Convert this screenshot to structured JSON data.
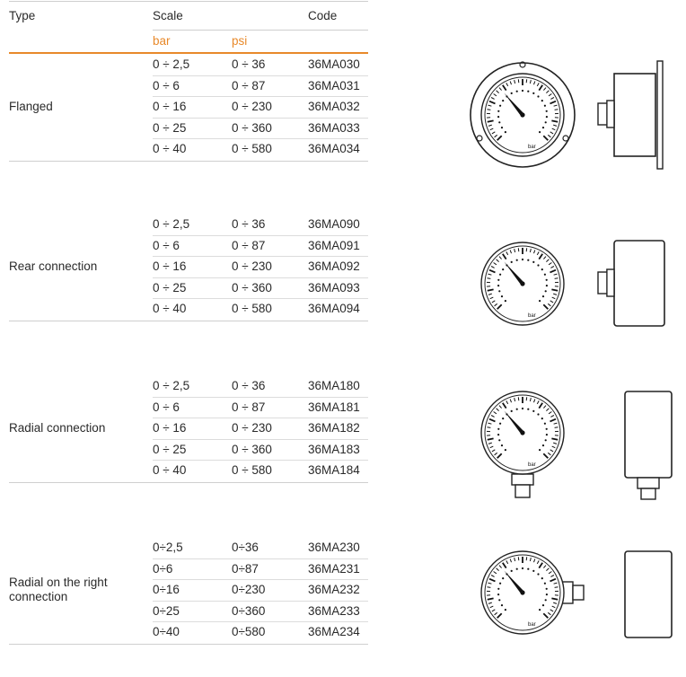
{
  "header": {
    "type": "Type",
    "scale": "Scale",
    "code": "Code",
    "bar": "bar",
    "psi": "psi"
  },
  "groups": [
    {
      "type": "Flanged",
      "rows": [
        {
          "bar": "0 ÷ 2,5",
          "psi": "0 ÷ 36",
          "code": "36MA030"
        },
        {
          "bar": "0 ÷ 6",
          "psi": "0 ÷ 87",
          "code": "36MA031"
        },
        {
          "bar": "0 ÷ 16",
          "psi": "0 ÷ 230",
          "code": "36MA032"
        },
        {
          "bar": "0 ÷ 25",
          "psi": "0 ÷ 360",
          "code": "36MA033"
        },
        {
          "bar": "0 ÷ 40",
          "psi": "0 ÷ 580",
          "code": "36MA034"
        }
      ]
    },
    {
      "type": "Rear connection",
      "rows": [
        {
          "bar": "0 ÷ 2,5",
          "psi": "0 ÷ 36",
          "code": "36MA090"
        },
        {
          "bar": "0 ÷ 6",
          "psi": "0 ÷ 87",
          "code": "36MA091"
        },
        {
          "bar": "0 ÷ 16",
          "psi": "0 ÷ 230",
          "code": "36MA092"
        },
        {
          "bar": "0 ÷ 25",
          "psi": "0 ÷ 360",
          "code": "36MA093"
        },
        {
          "bar": "0 ÷ 40",
          "psi": "0 ÷ 580",
          "code": "36MA094"
        }
      ]
    },
    {
      "type": "Radial connection",
      "rows": [
        {
          "bar": "0 ÷ 2,5",
          "psi": "0 ÷ 36",
          "code": "36MA180"
        },
        {
          "bar": "0 ÷ 6",
          "psi": "0 ÷ 87",
          "code": "36MA181"
        },
        {
          "bar": "0 ÷ 16",
          "psi": "0 ÷ 230",
          "code": "36MA182"
        },
        {
          "bar": "0 ÷ 25",
          "psi": "0 ÷ 360",
          "code": "36MA183"
        },
        {
          "bar": "0 ÷ 40",
          "psi": "0 ÷ 580",
          "code": "36MA184"
        }
      ]
    },
    {
      "type": "Radial on the right connection",
      "rows": [
        {
          "bar": "0÷2,5",
          "psi": "0÷36",
          "code": "36MA230"
        },
        {
          "bar": "0÷6",
          "psi": "0÷87",
          "code": "36MA231"
        },
        {
          "bar": "0÷16",
          "psi": "0÷230",
          "code": "36MA232"
        },
        {
          "bar": "0÷25",
          "psi": "0÷360",
          "code": "36MA233"
        },
        {
          "bar": "0÷40",
          "psi": "0÷580",
          "code": "36MA234"
        }
      ]
    }
  ],
  "dial": {
    "unit_label": "bar"
  },
  "figures": [
    {
      "name": "flanged-gauge-figure",
      "mount": "flanged"
    },
    {
      "name": "rear-connection-gauge-figure",
      "mount": "rear"
    },
    {
      "name": "radial-connection-gauge-figure",
      "mount": "radial"
    },
    {
      "name": "radial-right-connection-gauge-figure",
      "mount": "radial-right"
    }
  ]
}
